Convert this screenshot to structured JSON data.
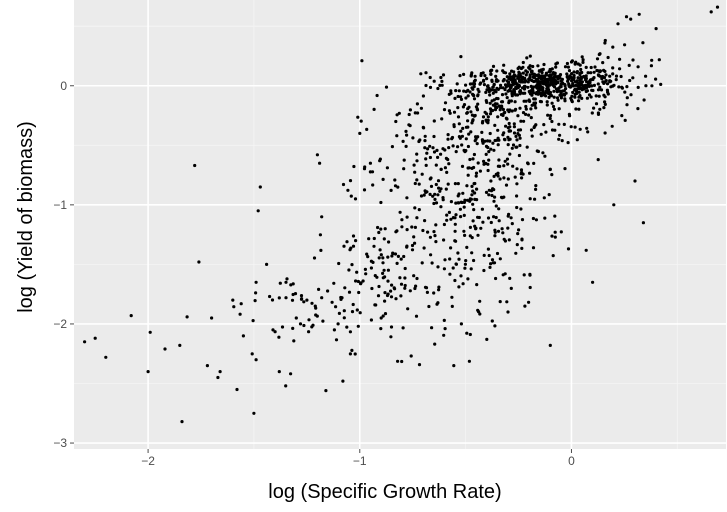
{
  "chart_data": {
    "type": "scatter",
    "title": "",
    "xlabel": "log (Specific Growth Rate)",
    "ylabel": "log (Yield of biomass)",
    "xlim": [
      -2.35,
      0.73
    ],
    "ylim": [
      -3.05,
      0.72
    ],
    "x_ticks": [
      -2,
      -1,
      0
    ],
    "x_tick_labels": [
      "−2",
      "−1",
      "0"
    ],
    "y_ticks": [
      -3,
      -2,
      -1,
      0
    ],
    "y_tick_labels": [
      "−3",
      "−2",
      "−1",
      "0"
    ],
    "grid": true,
    "legend": "none",
    "colors": {
      "panel": "#ebebeb",
      "grid_major": "#ffffff",
      "grid_minor": "#f5f5f5",
      "point": "#000000"
    },
    "points": [
      [
        -2.3,
        -2.15
      ],
      [
        -2.25,
        -2.12
      ],
      [
        -2.2,
        -2.28
      ],
      [
        -2.08,
        -1.93
      ],
      [
        -2.0,
        -2.4
      ],
      [
        -1.99,
        -2.07
      ],
      [
        -1.92,
        -2.21
      ],
      [
        -1.85,
        -2.18
      ],
      [
        -1.84,
        -2.82
      ],
      [
        -1.78,
        -0.67
      ],
      [
        -1.76,
        -1.48
      ],
      [
        -1.72,
        -2.35
      ],
      [
        -1.7,
        -1.95
      ],
      [
        -1.67,
        -2.45
      ],
      [
        -1.66,
        -2.4
      ],
      [
        -1.6,
        -1.8
      ],
      [
        -1.58,
        -2.55
      ],
      [
        -1.56,
        -1.83
      ],
      [
        -1.55,
        -2.1
      ],
      [
        -1.5,
        -2.75
      ],
      [
        -1.49,
        -2.3
      ],
      [
        -1.49,
        -1.65
      ],
      [
        -1.48,
        -1.05
      ],
      [
        -1.47,
        -0.85
      ],
      [
        -1.44,
        -1.5
      ],
      [
        -1.41,
        -2.05
      ],
      [
        -1.38,
        -2.4
      ],
      [
        -1.35,
        -2.52
      ],
      [
        -1.3,
        -1.95
      ],
      [
        -1.28,
        -2.0
      ],
      [
        -1.25,
        -1.8
      ],
      [
        -1.21,
        -1.85
      ],
      [
        -1.2,
        -0.58
      ],
      [
        -1.19,
        -0.65
      ],
      [
        -1.18,
        -1.1
      ],
      [
        -1.16,
        -2.56
      ],
      [
        -1.12,
        -2.05
      ],
      [
        -1.02,
        -0.95
      ],
      [
        -1.0,
        -0.4
      ],
      [
        -0.99,
        0.21
      ],
      [
        -0.95,
        -0.65
      ],
      [
        -0.9,
        -0.98
      ],
      [
        -0.88,
        -1.2
      ],
      [
        -0.83,
        -0.3
      ],
      [
        -0.7,
        -0.35
      ],
      [
        -0.6,
        -0.2
      ],
      [
        -0.52,
        -2.0
      ],
      [
        -0.4,
        -2.13
      ],
      [
        -0.3,
        -1.9
      ],
      [
        -0.22,
        -1.85
      ],
      [
        -0.1,
        -2.18
      ],
      [
        0.1,
        -1.65
      ],
      [
        0.2,
        -1.0
      ],
      [
        0.3,
        -0.8
      ],
      [
        0.34,
        -1.15
      ],
      [
        0.35,
        0.08
      ],
      [
        0.38,
        0.0
      ],
      [
        0.4,
        0.48
      ],
      [
        0.22,
        0.52
      ],
      [
        0.26,
        0.58
      ],
      [
        0.16,
        0.38
      ],
      [
        0.32,
        0.6
      ],
      [
        0.28,
        0.56
      ],
      [
        0.66,
        0.62
      ],
      [
        0.69,
        0.66
      ]
    ],
    "clusters": [
      {
        "cx": -0.12,
        "cy": 0.02,
        "sx": 0.17,
        "sy": 0.07,
        "n": 500
      },
      {
        "cx": -0.35,
        "cy": -0.25,
        "sx": 0.2,
        "sy": 0.22,
        "n": 240
      },
      {
        "cx": -0.55,
        "cy": -0.85,
        "sx": 0.22,
        "sy": 0.4,
        "n": 230
      },
      {
        "cx": -0.4,
        "cy": -0.9,
        "sx": 0.18,
        "sy": 0.45,
        "n": 150
      },
      {
        "cx": -0.8,
        "cy": -1.6,
        "sx": 0.22,
        "sy": 0.3,
        "n": 160
      },
      {
        "cx": -1.25,
        "cy": -1.95,
        "sx": 0.22,
        "sy": 0.22,
        "n": 60
      },
      {
        "cx": 0.15,
        "cy": 0.05,
        "sx": 0.12,
        "sy": 0.2,
        "n": 80
      }
    ]
  }
}
